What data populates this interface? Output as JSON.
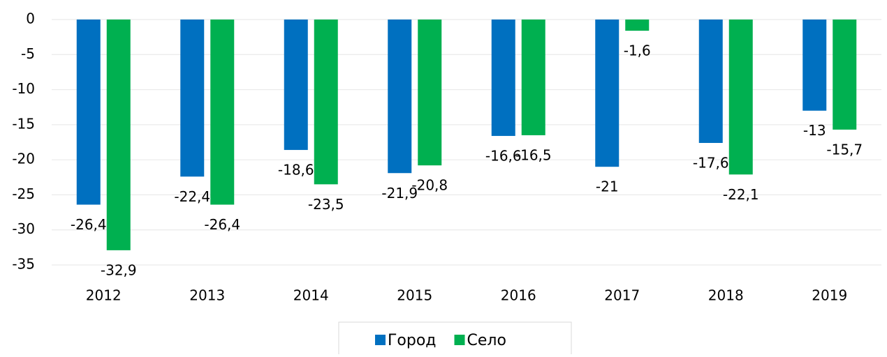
{
  "chart_data": {
    "type": "bar",
    "categories": [
      "2012",
      "2013",
      "2014",
      "2015",
      "2016",
      "2017",
      "2018",
      "2019"
    ],
    "series": [
      {
        "name": "Город",
        "color": "#0070c0",
        "values": [
          -26.4,
          -22.4,
          -18.6,
          -21.9,
          -16.6,
          -21,
          -17.6,
          -13
        ],
        "value_labels": [
          "-26,4",
          "-22,4",
          "-18,6",
          "-21,9",
          "-16,6",
          "-21",
          "-17,6",
          "-13"
        ]
      },
      {
        "name": "Село",
        "color": "#00b050",
        "values": [
          -32.9,
          -26.4,
          -23.5,
          -20.8,
          -16.5,
          -1.6,
          -22.1,
          -15.7
        ],
        "value_labels": [
          "-32,9",
          "-26,4",
          "-23,5",
          "-20,8",
          "-16,5",
          "-1,6",
          "-22,1",
          "-15,7"
        ]
      }
    ],
    "ylim": [
      -35,
      0
    ],
    "yticks": [
      0,
      -5,
      -10,
      -15,
      -20,
      -25,
      -30,
      -35
    ],
    "grid": true,
    "legend": "bottom"
  }
}
